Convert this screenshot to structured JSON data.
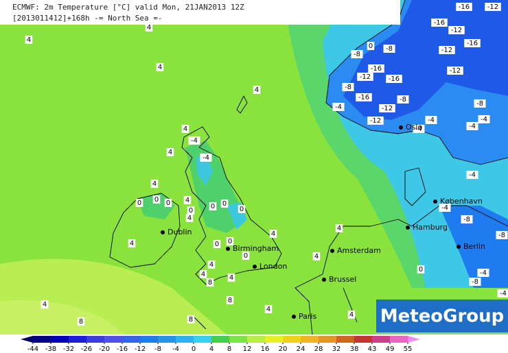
{
  "header": {
    "title": "ECMWF: 2m Temperature [°C] valid Mon, 21JAN2013 12Z",
    "subtitle": "[2013011412]+168h  -= North Sea =-"
  },
  "contours": [
    4,
    4,
    4,
    4,
    4,
    -4,
    4,
    -4,
    4,
    0,
    0,
    0,
    4,
    0,
    4,
    0,
    0,
    0,
    4,
    4,
    0,
    0,
    0,
    4,
    4,
    8,
    4,
    4,
    4,
    4,
    8,
    8,
    4,
    8,
    4,
    0,
    -8,
    0,
    -8,
    -16,
    -12,
    -16,
    -8,
    -4,
    -16,
    -12,
    -8,
    -12,
    -4,
    -4,
    -4,
    -8,
    -12,
    -12,
    -16,
    -12,
    -16,
    -16,
    -12,
    -4,
    -4,
    -8,
    -8,
    -4,
    -8,
    -4,
    -4
  ],
  "cities": [
    "Oslo",
    "København",
    "Hamburg",
    "Berlin",
    "Dublin",
    "Birmingham",
    "London",
    "Amsterdam",
    "Brussel",
    "Paris"
  ],
  "legend": {
    "ticks": [
      -44,
      -38,
      -32,
      -26,
      -20,
      -16,
      -12,
      -8,
      -4,
      0,
      4,
      8,
      12,
      16,
      20,
      24,
      28,
      32,
      38,
      43,
      49,
      55
    ],
    "colors": [
      "#00008c",
      "#0000b4",
      "#1e1ed2",
      "#3c3ce6",
      "#5050f0",
      "#3264f0",
      "#1e7cf0",
      "#1e96f0",
      "#28b4f0",
      "#32d2f0",
      "#3cd24a",
      "#78e63c",
      "#b4f03c",
      "#e6f028",
      "#f0d21e",
      "#f0b41e",
      "#e6961e",
      "#d2641e",
      "#c83232",
      "#d23c8c",
      "#f064c8"
    ],
    "low_color": "#000064",
    "high_color": "#f08cf0"
  },
  "logo": "MeteoGroup"
}
